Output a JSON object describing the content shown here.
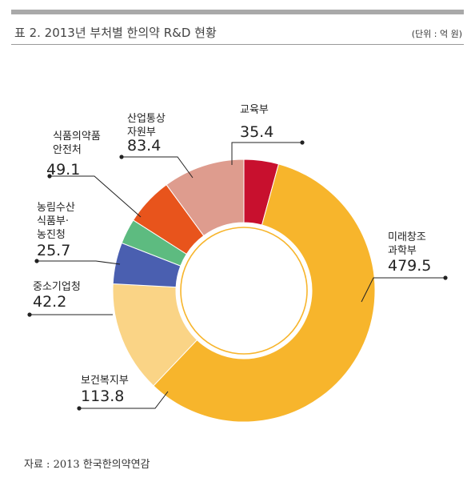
{
  "header": {
    "title": "표 2. 2013년 부처별 한의약 R&D 현황",
    "unit": "(단위 : 억 원)"
  },
  "footer": {
    "source": "자료 : 2013 한국한의약연감"
  },
  "chart_data": {
    "type": "pie",
    "title": "표 2. 2013년 부처별 한의약 R&D 현황",
    "unit": "(단위 : 억 원)",
    "legend": "none",
    "slices": [
      {
        "name_lines": [
          "교육부"
        ],
        "value": 35.4,
        "value_label": "35.4",
        "color": "#c8102e"
      },
      {
        "name_lines": [
          "미래창조",
          "과학부"
        ],
        "value": 479.5,
        "value_label": "479.5",
        "color": "#f7b52c"
      },
      {
        "name_lines": [
          "보건복지부"
        ],
        "value": 113.8,
        "value_label": "113.8",
        "color": "#fad486"
      },
      {
        "name_lines": [
          "중소기업청"
        ],
        "value": 42.2,
        "value_label": "42.2",
        "color": "#4a5fb0"
      },
      {
        "name_lines": [
          "농림수산",
          "식품부·",
          "농진청"
        ],
        "value": 25.7,
        "value_label": "25.7",
        "color": "#5dbb80"
      },
      {
        "name_lines": [
          "식품의약품",
          "안전처"
        ],
        "value": 49.1,
        "value_label": "49.1",
        "color": "#e8541c"
      },
      {
        "name_lines": [
          "산업통상",
          "자원부"
        ],
        "value": 83.4,
        "value_label": "83.4",
        "color": "#de9c8e"
      }
    ]
  }
}
